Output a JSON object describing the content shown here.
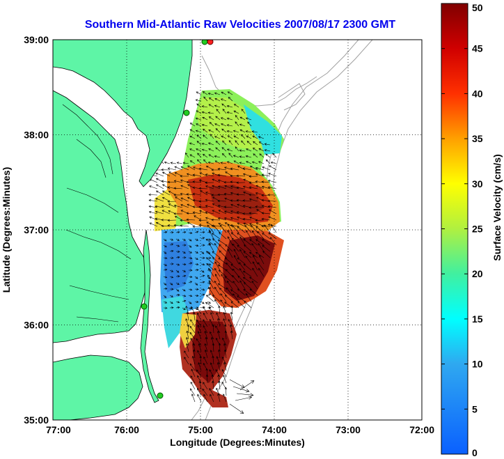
{
  "title": "Southern Mid-Atlantic Raw Velocities 2007/08/17 2300 GMT",
  "xlabel": "Longitude (Degrees:Minutes)",
  "ylabel": "Latitude (Degrees:Minutes)",
  "map": {
    "lon_range": [
      -77,
      -72
    ],
    "lat_range": [
      35,
      39
    ],
    "x_ticks": [
      {
        "value": -77,
        "label": "77:00"
      },
      {
        "value": -76,
        "label": "76:00"
      },
      {
        "value": -75,
        "label": "75:00"
      },
      {
        "value": -74,
        "label": "74:00"
      },
      {
        "value": -73,
        "label": "73:00"
      },
      {
        "value": -72,
        "label": "72:00"
      }
    ],
    "y_ticks": [
      {
        "value": 39,
        "label": "39:00"
      },
      {
        "value": 38,
        "label": "38:00"
      },
      {
        "value": 37,
        "label": "37:00"
      },
      {
        "value": 36,
        "label": "36:00"
      },
      {
        "value": 35,
        "label": "35:00"
      }
    ],
    "grid": true,
    "land_color": "#5ef5a6",
    "coast_color": "#000000",
    "bathymetry_color": "#a0a0a0"
  },
  "colorbar": {
    "label": "Surface Velocity (cm/s)",
    "range": [
      0,
      50
    ],
    "ticks": [
      {
        "value": 0,
        "label": "0"
      },
      {
        "value": 5,
        "label": "5"
      },
      {
        "value": 10,
        "label": "10"
      },
      {
        "value": 15,
        "label": "15"
      },
      {
        "value": 20,
        "label": "20"
      },
      {
        "value": 25,
        "label": "25"
      },
      {
        "value": 30,
        "label": "30"
      },
      {
        "value": 35,
        "label": "35"
      },
      {
        "value": 40,
        "label": "40"
      },
      {
        "value": 45,
        "label": "45"
      },
      {
        "value": 50,
        "label": "50"
      }
    ],
    "colormap": "jet"
  }
}
